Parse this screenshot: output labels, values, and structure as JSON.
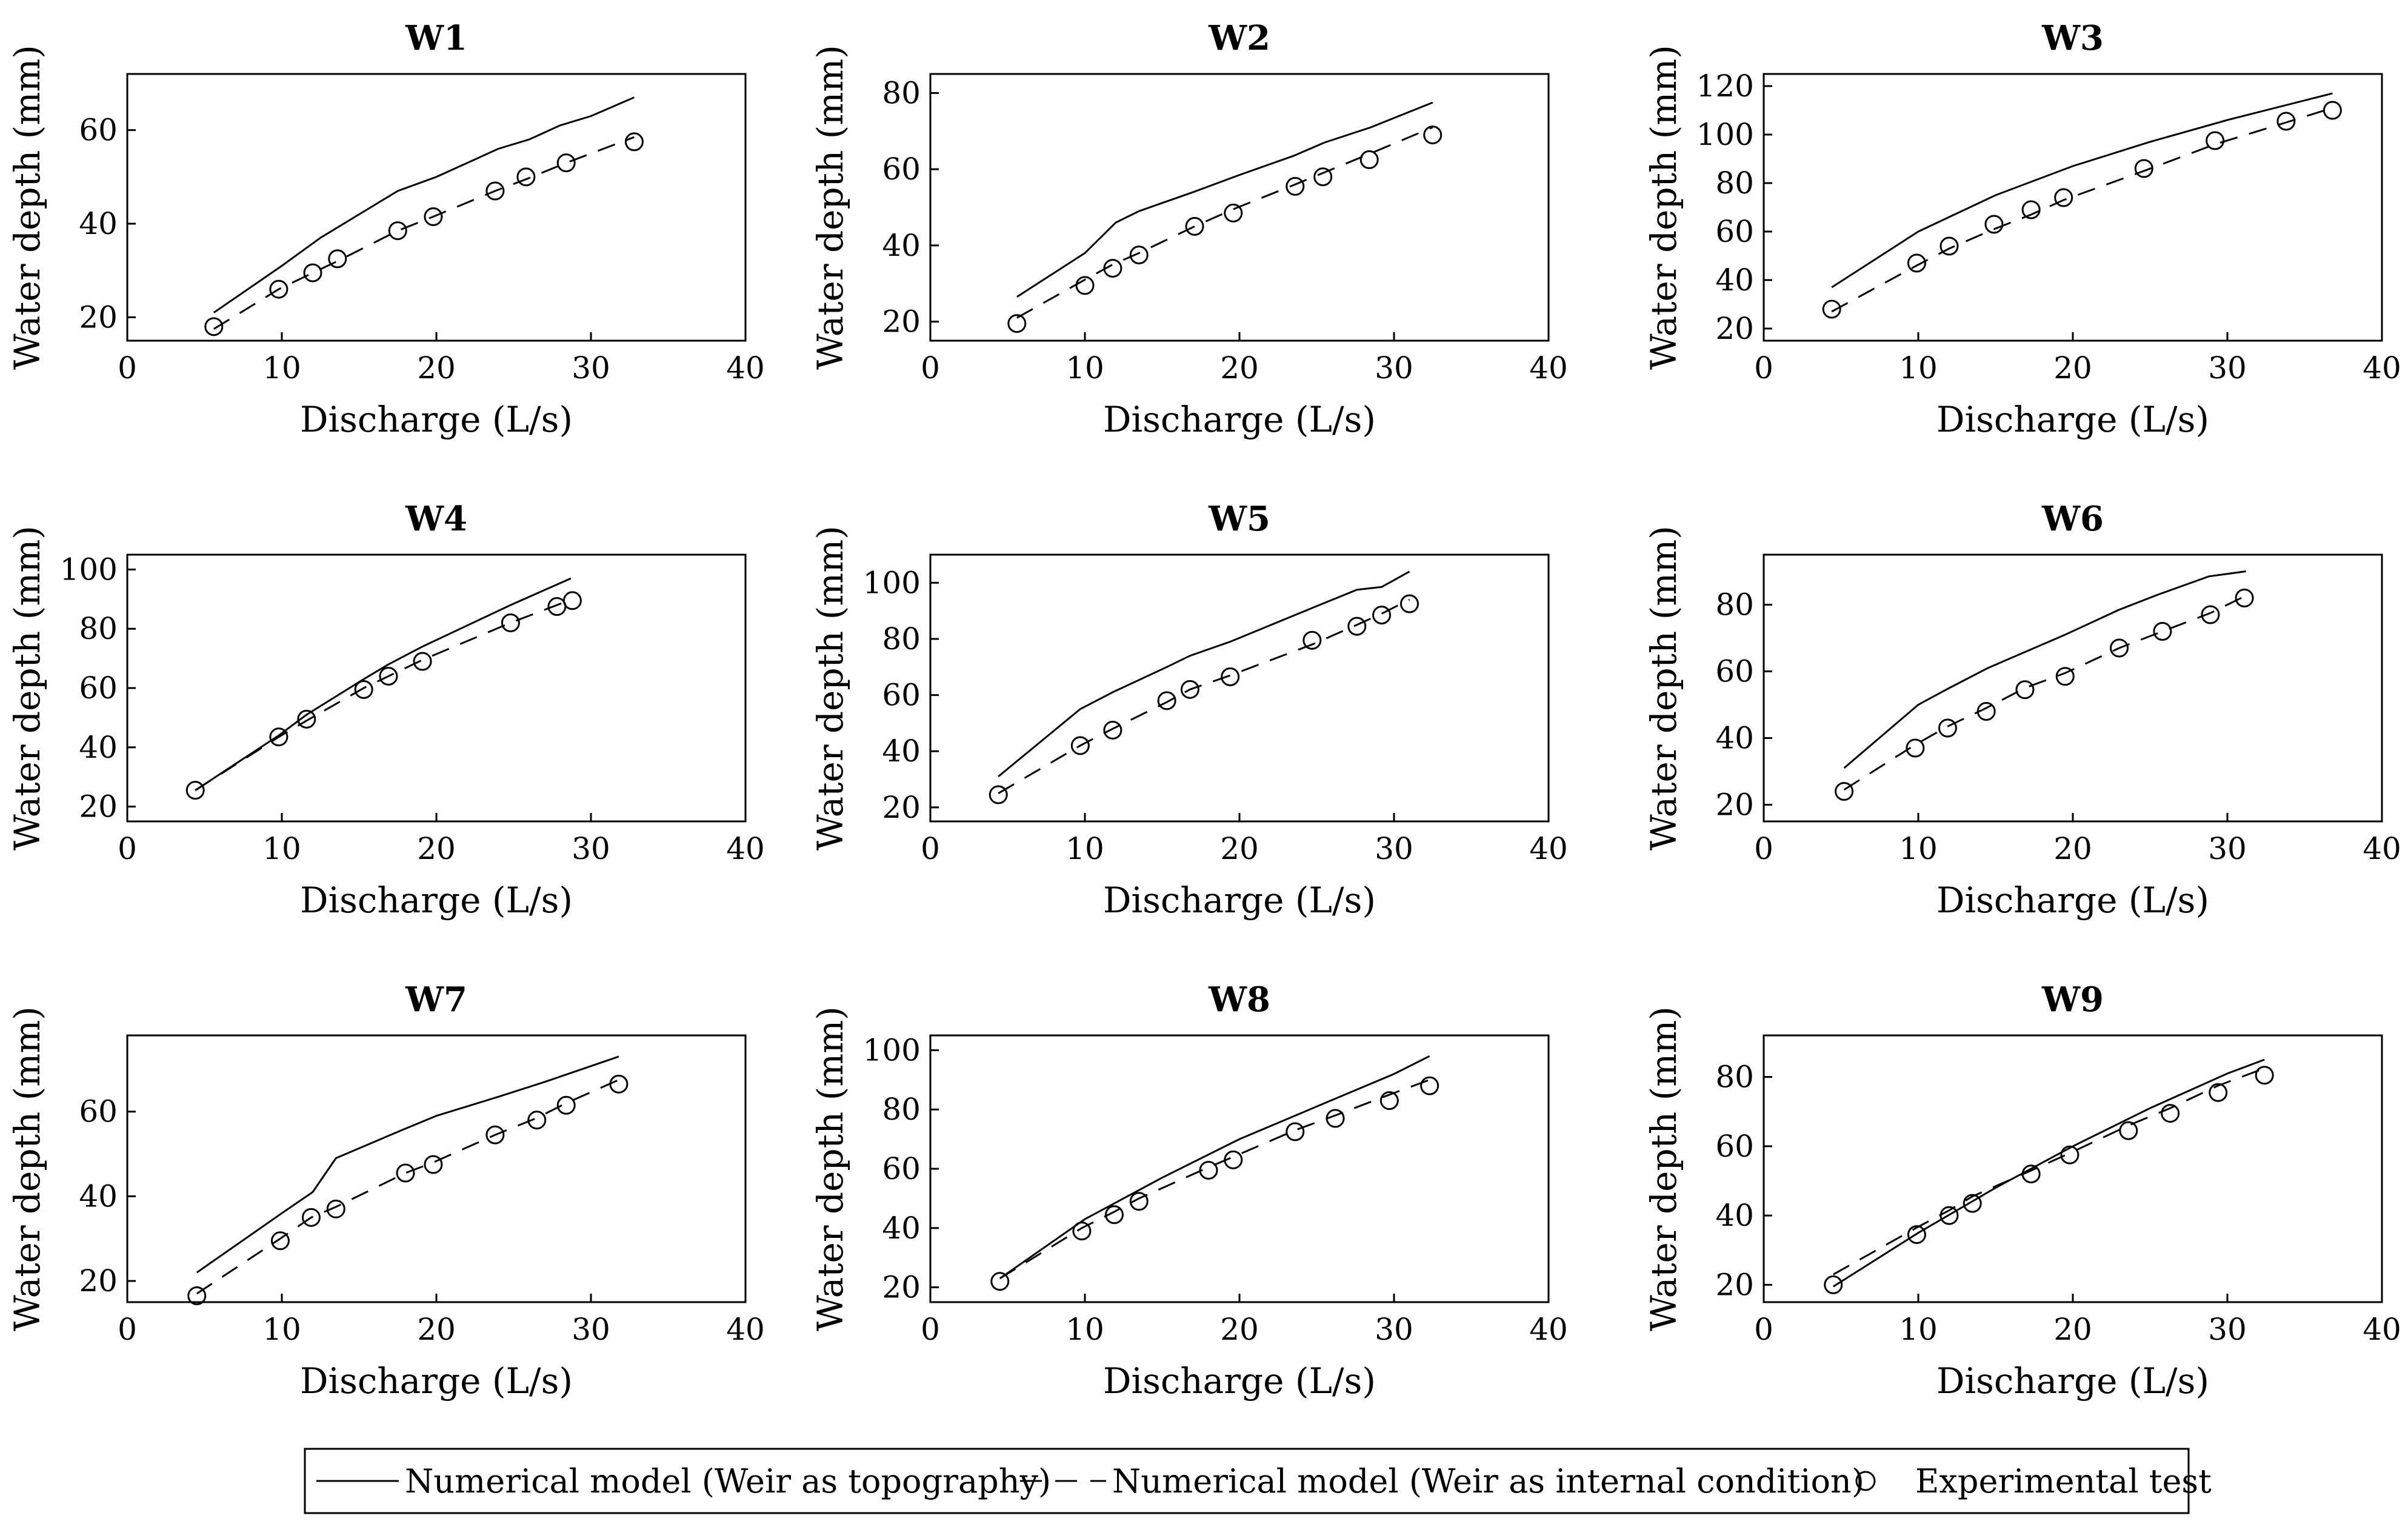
{
  "legend": {
    "items": [
      {
        "label": "Numerical model (Weir as topography)",
        "style": "solid"
      },
      {
        "label": "Numerical model (Weir as internal condition)",
        "style": "dashed"
      },
      {
        "label": "Experimental test",
        "style": "circle"
      }
    ]
  },
  "chart_data": [
    {
      "type": "line",
      "title": "W1",
      "xlabel": "Discharge (L/s)",
      "ylabel": "Water depth (mm)",
      "xlim": [
        0,
        40
      ],
      "ylim": [
        15,
        72
      ],
      "xticks": [
        0,
        10,
        20,
        30,
        40
      ],
      "yticks": [
        20,
        40,
        60
      ],
      "series": [
        {
          "name": "Numerical model (Weir as topography)",
          "style": "solid",
          "x": [
            5.6,
            10,
            12.5,
            15,
            17.5,
            20,
            22,
            24,
            26,
            28,
            30,
            32.8
          ],
          "y": [
            21,
            31,
            37,
            42,
            47,
            50,
            53,
            56,
            58,
            61,
            63,
            67
          ]
        },
        {
          "name": "Numerical model (Weir as internal condition)",
          "style": "dashed",
          "x": [
            5.6,
            9.8,
            12,
            13.6,
            17.5,
            19.8,
            23.8,
            25.8,
            28.4,
            32.8
          ],
          "y": [
            17.5,
            26,
            29.5,
            32,
            38.5,
            41.5,
            47,
            49.5,
            53,
            58.5
          ]
        },
        {
          "name": "Experimental test",
          "style": "circle",
          "x": [
            5.6,
            9.8,
            12,
            13.6,
            17.5,
            19.8,
            23.8,
            25.8,
            28.4,
            32.8
          ],
          "y": [
            18,
            26,
            29.5,
            32.5,
            38.5,
            41.5,
            47,
            50,
            53,
            57.5
          ]
        }
      ]
    },
    {
      "type": "line",
      "title": "W2",
      "xlabel": "Discharge (L/s)",
      "ylabel": "Water depth (mm)",
      "xlim": [
        0,
        40
      ],
      "ylim": [
        15,
        85
      ],
      "xticks": [
        0,
        10,
        20,
        30,
        40
      ],
      "yticks": [
        20,
        40,
        60,
        80
      ],
      "series": [
        {
          "name": "Numerical model (Weir as topography)",
          "style": "solid",
          "x": [
            5.6,
            10,
            12,
            13.5,
            17,
            20,
            23.5,
            25.5,
            28.5,
            32.5
          ],
          "y": [
            26.5,
            38,
            46,
            49,
            54,
            58.5,
            63.5,
            67,
            71,
            77.5
          ]
        },
        {
          "name": "Numerical model (Weir as internal condition)",
          "style": "dashed",
          "x": [
            5.6,
            10,
            11.8,
            13.5,
            17.1,
            19.6,
            23.6,
            25.4,
            28.4,
            32.5
          ],
          "y": [
            21,
            31,
            35,
            38,
            45,
            49.5,
            56,
            59,
            64,
            71
          ]
        },
        {
          "name": "Experimental test",
          "style": "circle",
          "x": [
            5.6,
            10,
            11.8,
            13.5,
            17.1,
            19.6,
            23.6,
            25.4,
            28.4,
            32.5
          ],
          "y": [
            19.5,
            29.5,
            34,
            37.5,
            45,
            48.5,
            55.5,
            58,
            62.5,
            69
          ]
        }
      ]
    },
    {
      "type": "line",
      "title": "W3",
      "xlabel": "Discharge (L/s)",
      "ylabel": "Water depth (mm)",
      "xlim": [
        0,
        40
      ],
      "ylim": [
        15,
        125
      ],
      "xticks": [
        0,
        10,
        20,
        30,
        40
      ],
      "yticks": [
        20,
        40,
        60,
        80,
        100,
        120
      ],
      "series": [
        {
          "name": "Numerical model (Weir as topography)",
          "style": "solid",
          "x": [
            4.4,
            10,
            15,
            20,
            25,
            30,
            36.8
          ],
          "y": [
            37,
            60,
            75,
            87,
            97,
            106,
            117
          ]
        },
        {
          "name": "Numerical model (Weir as internal condition)",
          "style": "dashed",
          "x": [
            4.4,
            9.9,
            12,
            14.9,
            17.3,
            19.4,
            24.6,
            29.2,
            33.8,
            36.8
          ],
          "y": [
            27,
            46,
            53,
            61,
            67,
            73,
            85,
            96,
            105,
            111
          ]
        },
        {
          "name": "Experimental test",
          "style": "circle",
          "x": [
            4.4,
            9.9,
            12,
            14.9,
            17.3,
            19.4,
            24.6,
            29.2,
            33.8,
            36.8
          ],
          "y": [
            28,
            47,
            54,
            63,
            69,
            74,
            86,
            97.5,
            105.5,
            110
          ]
        }
      ]
    },
    {
      "type": "line",
      "title": "W4",
      "xlabel": "Discharge (L/s)",
      "ylabel": "Water depth (mm)",
      "xlim": [
        0,
        40
      ],
      "ylim": [
        15,
        105
      ],
      "xticks": [
        0,
        10,
        20,
        30,
        40
      ],
      "yticks": [
        20,
        40,
        60,
        80,
        100
      ],
      "series": [
        {
          "name": "Numerical model (Weir as topography)",
          "style": "solid",
          "x": [
            4.4,
            9.8,
            11.6,
            15.3,
            16.9,
            19.1,
            24.8,
            28.7
          ],
          "y": [
            25.5,
            44,
            51,
            63,
            68,
            74,
            88,
            97
          ]
        },
        {
          "name": "Numerical model (Weir as internal condition)",
          "style": "dashed",
          "x": [
            4.4,
            9.8,
            11.6,
            15.3,
            16.9,
            19.1,
            24.8,
            27.8,
            28.8
          ],
          "y": [
            25.5,
            43.5,
            49,
            60,
            64,
            69.5,
            82,
            88,
            90
          ]
        },
        {
          "name": "Experimental test",
          "style": "circle",
          "x": [
            4.4,
            9.8,
            11.6,
            15.3,
            16.9,
            19.1,
            24.8,
            27.8,
            28.8
          ],
          "y": [
            25.5,
            43.5,
            49.5,
            59.5,
            64,
            69,
            82,
            87.5,
            89.5
          ]
        }
      ]
    },
    {
      "type": "line",
      "title": "W5",
      "xlabel": "Discharge (L/s)",
      "ylabel": "Water depth (mm)",
      "xlim": [
        0,
        40
      ],
      "ylim": [
        15,
        110
      ],
      "xticks": [
        0,
        10,
        20,
        30,
        40
      ],
      "yticks": [
        20,
        40,
        60,
        80,
        100
      ],
      "series": [
        {
          "name": "Numerical model (Weir as topography)",
          "style": "solid",
          "x": [
            4.4,
            9.7,
            11.8,
            15.3,
            16.8,
            19.4,
            24.7,
            27.6,
            29.2,
            31
          ],
          "y": [
            31,
            55,
            61,
            70,
            74,
            79,
            91,
            97.5,
            98.5,
            104
          ]
        },
        {
          "name": "Numerical model (Weir as internal condition)",
          "style": "dashed",
          "x": [
            4.4,
            9.7,
            11.8,
            15.3,
            16.8,
            19.4,
            24.7,
            27.6,
            29.2,
            31
          ],
          "y": [
            25,
            42,
            48,
            57.5,
            62,
            67,
            78,
            85,
            89,
            94
          ]
        },
        {
          "name": "Experimental test",
          "style": "circle",
          "x": [
            4.4,
            9.7,
            11.8,
            15.3,
            16.8,
            19.4,
            24.7,
            27.6,
            29.2,
            31
          ],
          "y": [
            24.5,
            42,
            47.5,
            58,
            62,
            66.5,
            79.5,
            84.5,
            88.5,
            92.5
          ]
        }
      ]
    },
    {
      "type": "line",
      "title": "W6",
      "xlabel": "Discharge (L/s)",
      "ylabel": "Water depth (mm)",
      "xlim": [
        0,
        40
      ],
      "ylim": [
        15,
        95
      ],
      "xticks": [
        0,
        10,
        20,
        30,
        40
      ],
      "yticks": [
        20,
        40,
        60,
        80
      ],
      "series": [
        {
          "name": "Numerical model (Weir as topography)",
          "style": "solid",
          "x": [
            5.2,
            10,
            12,
            14.5,
            17,
            19.5,
            23,
            25.5,
            28.8,
            31.2
          ],
          "y": [
            31,
            50,
            55,
            61,
            66,
            71,
            78.5,
            83,
            88.5,
            90
          ]
        },
        {
          "name": "Numerical model (Weir as internal condition)",
          "style": "dashed",
          "x": [
            5.2,
            9.8,
            11.9,
            14.4,
            16.9,
            19.5,
            23,
            25.8,
            28.9,
            31.1
          ],
          "y": [
            24.5,
            38,
            43.5,
            49,
            55,
            59.5,
            67,
            72,
            77.5,
            82.5
          ]
        },
        {
          "name": "Experimental test",
          "style": "circle",
          "x": [
            5.2,
            9.8,
            11.9,
            14.4,
            16.9,
            19.5,
            23,
            25.8,
            28.9,
            31.1
          ],
          "y": [
            24,
            37,
            43,
            48,
            54.5,
            58.5,
            67,
            72,
            77,
            82
          ]
        }
      ]
    },
    {
      "type": "line",
      "title": "W7",
      "xlabel": "Discharge (L/s)",
      "ylabel": "Water depth (mm)",
      "xlim": [
        0,
        40
      ],
      "ylim": [
        15,
        78
      ],
      "xticks": [
        0,
        10,
        20,
        30,
        40
      ],
      "yticks": [
        20,
        40,
        60
      ],
      "series": [
        {
          "name": "Numerical model (Weir as topography)",
          "style": "solid",
          "x": [
            4.5,
            10,
            12,
            13.5,
            18,
            20,
            24,
            27,
            31.8
          ],
          "y": [
            22,
            36,
            41,
            49,
            56,
            59,
            63.5,
            67,
            73
          ]
        },
        {
          "name": "Numerical model (Weir as internal condition)",
          "style": "dashed",
          "x": [
            4.5,
            9.9,
            11.9,
            13.5,
            18,
            19.8,
            23.8,
            26.5,
            28.4,
            31.8
          ],
          "y": [
            17,
            30,
            35,
            37.5,
            45.5,
            48,
            54.5,
            58.5,
            62,
            67.5
          ]
        },
        {
          "name": "Experimental test",
          "style": "circle",
          "x": [
            4.5,
            9.9,
            11.9,
            13.5,
            18,
            19.8,
            23.8,
            26.5,
            28.4,
            31.8
          ],
          "y": [
            16.5,
            29.5,
            35,
            37,
            45.5,
            47.5,
            54.5,
            58,
            61.5,
            66.5
          ]
        }
      ]
    },
    {
      "type": "line",
      "title": "W8",
      "xlabel": "Discharge (L/s)",
      "ylabel": "Water depth (mm)",
      "xlim": [
        0,
        40
      ],
      "ylim": [
        15,
        105
      ],
      "xticks": [
        0,
        10,
        20,
        30,
        40
      ],
      "yticks": [
        20,
        40,
        60,
        80,
        100
      ],
      "series": [
        {
          "name": "Numerical model (Weir as topography)",
          "style": "solid",
          "x": [
            4.5,
            10,
            15,
            20,
            25,
            30,
            32.3
          ],
          "y": [
            23,
            43,
            57,
            70,
            81,
            92,
            98
          ]
        },
        {
          "name": "Numerical model (Weir as internal condition)",
          "style": "dashed",
          "x": [
            4.5,
            9.8,
            11.9,
            13.5,
            18,
            19.6,
            23.6,
            26.2,
            29.7,
            32.3
          ],
          "y": [
            23,
            40,
            45.5,
            50,
            60.5,
            64,
            73,
            78,
            85,
            90
          ]
        },
        {
          "name": "Experimental test",
          "style": "circle",
          "x": [
            4.5,
            9.8,
            11.9,
            13.5,
            18,
            19.6,
            23.6,
            26.2,
            29.7,
            32.3
          ],
          "y": [
            22,
            39,
            44.5,
            49,
            59.5,
            63,
            72.5,
            77,
            83,
            88
          ]
        }
      ]
    },
    {
      "type": "line",
      "title": "W9",
      "xlabel": "Discharge (L/s)",
      "ylabel": "Water depth (mm)",
      "xlim": [
        0,
        40
      ],
      "ylim": [
        15,
        92
      ],
      "xticks": [
        0,
        10,
        20,
        30,
        40
      ],
      "yticks": [
        20,
        40,
        60,
        80
      ],
      "series": [
        {
          "name": "Numerical model (Weir as topography)",
          "style": "solid",
          "x": [
            4.5,
            10,
            15,
            20,
            25,
            30,
            32.4
          ],
          "y": [
            19.5,
            35,
            48,
            60,
            71,
            81,
            85
          ]
        },
        {
          "name": "Numerical model (Weir as internal condition)",
          "style": "dashed",
          "x": [
            4.5,
            9.9,
            12,
            13.5,
            17.3,
            19.8,
            23.6,
            26.3,
            29.4,
            32.4
          ],
          "y": [
            23,
            36.5,
            41.5,
            45.5,
            53,
            58,
            66,
            71,
            77.5,
            82.5
          ]
        },
        {
          "name": "Experimental test",
          "style": "circle",
          "x": [
            4.5,
            9.9,
            12,
            13.5,
            17.3,
            19.8,
            23.6,
            26.3,
            29.4,
            32.4
          ],
          "y": [
            20,
            34.5,
            40,
            43.5,
            52,
            57.5,
            64.5,
            69.5,
            75.5,
            80.5
          ]
        }
      ]
    }
  ]
}
